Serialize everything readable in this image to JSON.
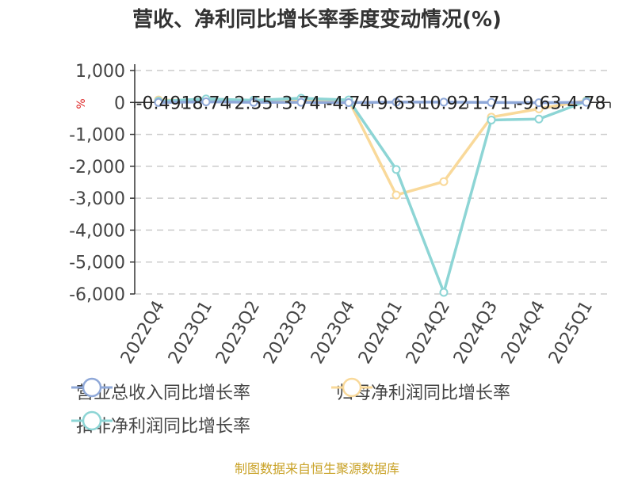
{
  "chart_data": {
    "type": "line",
    "title": "营收、净利同比增长率季度变动情况(%)",
    "ylabel": "%",
    "ylim": [
      -6000,
      1000
    ],
    "yticks": [
      1000,
      0,
      -1000,
      -2000,
      -3000,
      -4000,
      -5000,
      -6000
    ],
    "ytick_labels": [
      "1,000",
      "0",
      "-1,000",
      "-2,000",
      "-3,000",
      "-4,000",
      "-5,000",
      "-6,000"
    ],
    "grid": true,
    "legend_position": "bottom",
    "categories": [
      "2022Q4",
      "2023Q1",
      "2023Q2",
      "2023Q3",
      "2023Q4",
      "2024Q1",
      "2024Q2",
      "2024Q3",
      "2024Q4",
      "2025Q1"
    ],
    "series": [
      {
        "name": "营业总收入同比增长率",
        "color": "#8fa8d8",
        "values": [
          -0.49,
          18.74,
          2.55,
          3.74,
          -4.74,
          9.63,
          10.92,
          1.71,
          -9.63,
          4.78
        ]
      },
      {
        "name": "归母净利润同比增长率",
        "color": "#f9d99a",
        "values": [
          80,
          50,
          60,
          90,
          70,
          -2900,
          -2480,
          -460,
          -200,
          60
        ]
      },
      {
        "name": "扣非净利润同比增长率",
        "color": "#8dd5d5",
        "values": [
          40,
          110,
          70,
          130,
          80,
          -2100,
          -5950,
          -550,
          -520,
          40
        ]
      }
    ],
    "data_labels": [
      "-0.49",
      "18.74",
      "2.55",
      "3.74",
      "-4.74",
      "9.63",
      "10.92",
      "1.71",
      "-9.63",
      "4.78"
    ]
  },
  "footer": "制图数据来自恒生聚源数据库"
}
